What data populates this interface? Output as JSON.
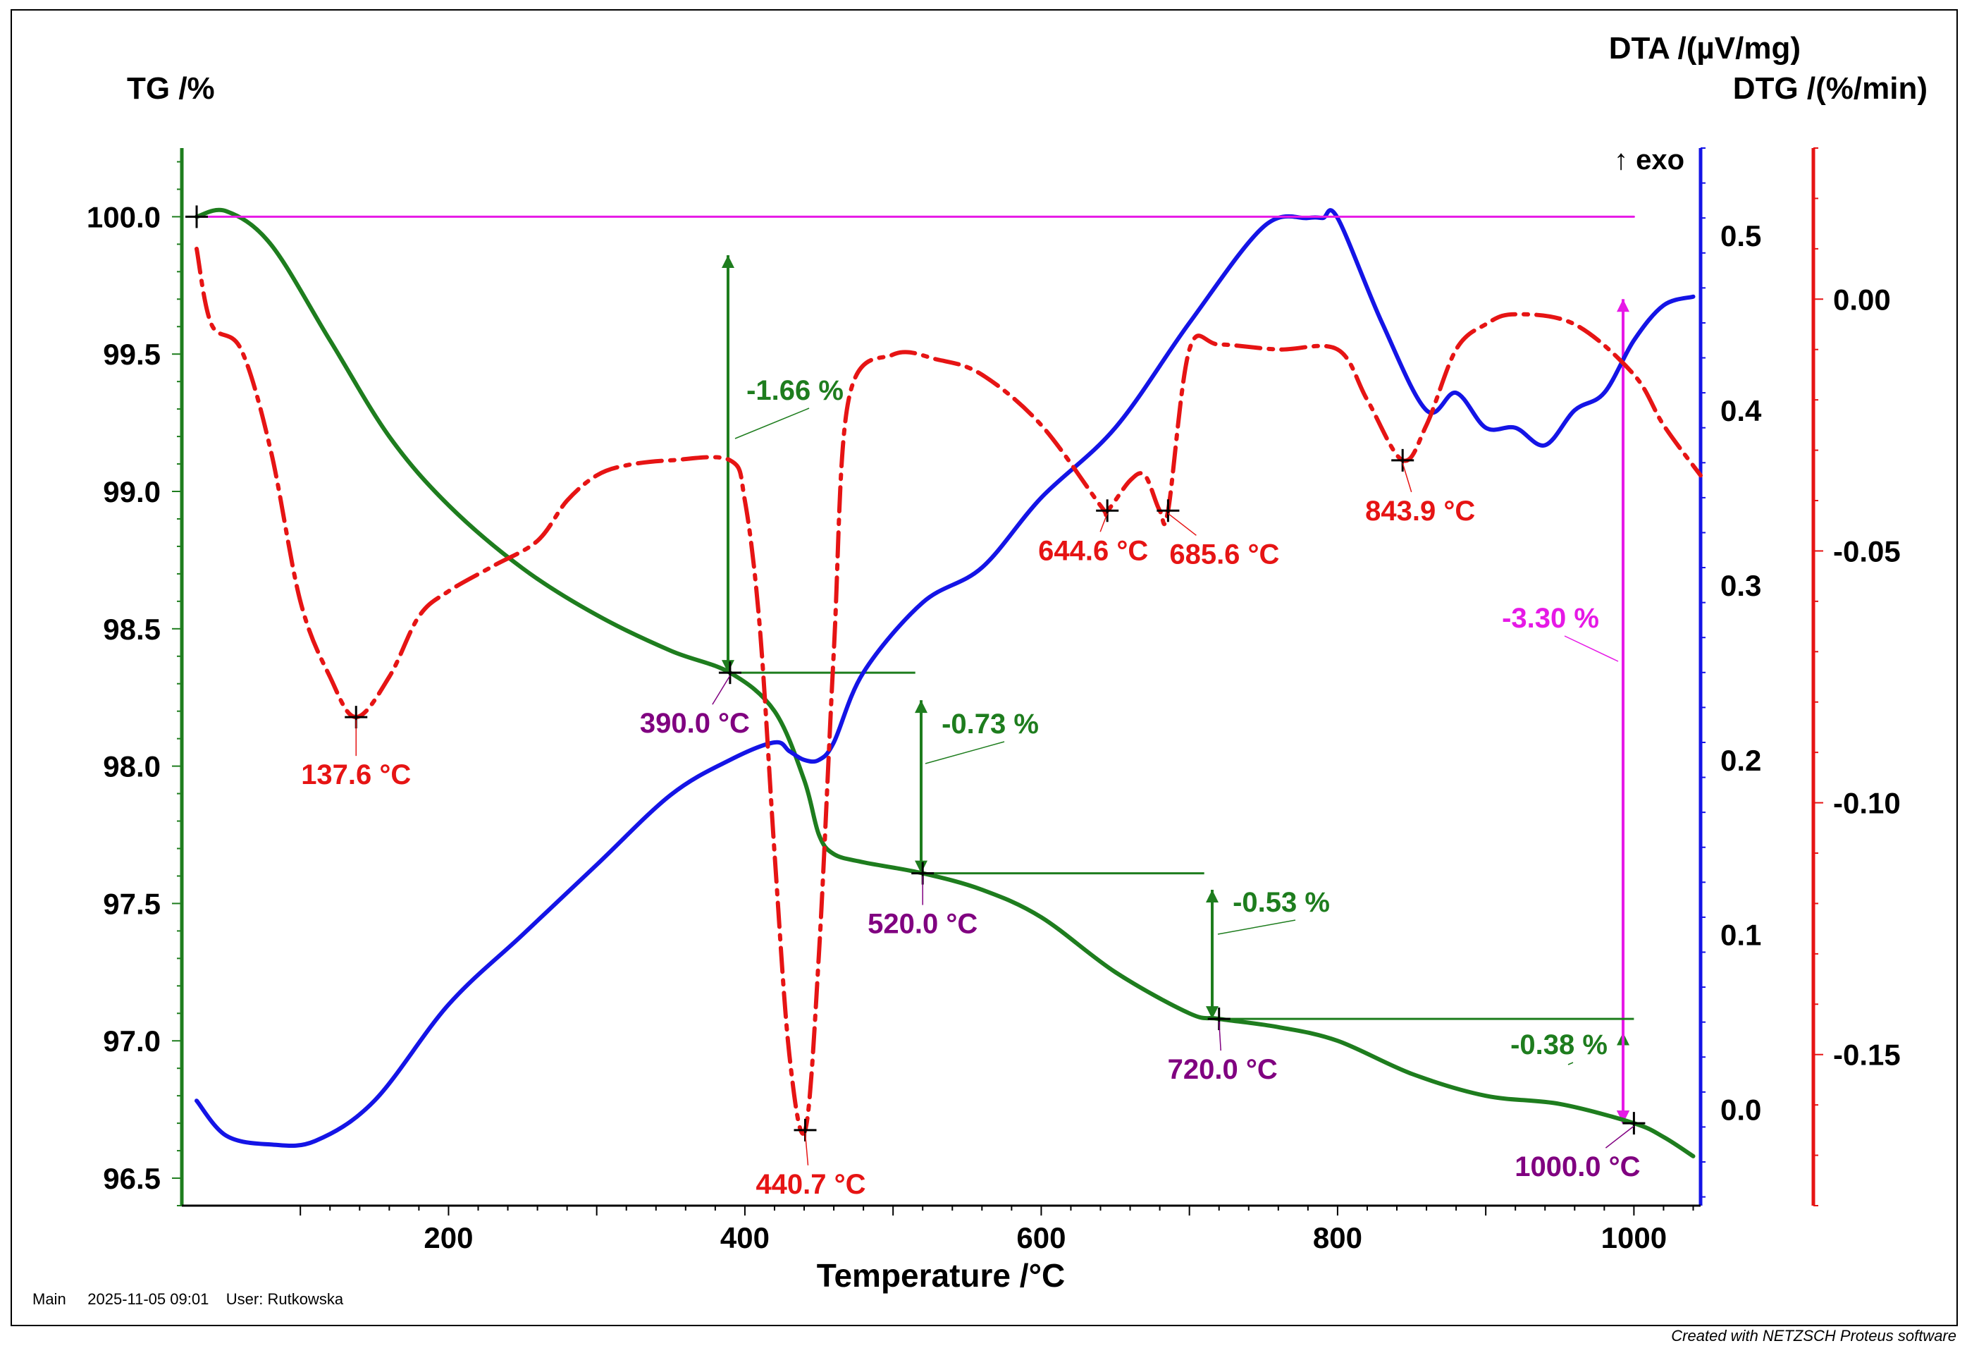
{
  "chart_data": {
    "type": "line",
    "title": "",
    "xlabel": "Temperature /°C",
    "xlim": [
      20,
      1045
    ],
    "x_ticks": [
      200,
      400,
      600,
      800,
      1000
    ],
    "axes": {
      "tg": {
        "label": "TG /%",
        "ylim": [
          96.4,
          100.25
        ],
        "ticks": [
          "100.0",
          "99.5",
          "99.0",
          "98.5",
          "98.0",
          "97.5",
          "97.0",
          "96.5"
        ],
        "color": "#1e7d1e"
      },
      "dta": {
        "label": "DTA /(µV/mg)",
        "ylim": [
          -0.055,
          0.55
        ],
        "ticks": [
          "0.5",
          "0.4",
          "0.3",
          "0.2",
          "0.1",
          "0.0"
        ],
        "exo_label": "↑ exo",
        "color": "#1414e6"
      },
      "dtg": {
        "label": "DTG /(%/min)",
        "ylim": [
          -0.18,
          0.03
        ],
        "ticks": [
          "0.00",
          "-0.05",
          "-0.10",
          "-0.15"
        ],
        "color": "#e61414"
      }
    },
    "series": [
      {
        "name": "TG",
        "axis": "tg",
        "color": "#1e7d1e",
        "x": [
          30,
          50,
          80,
          120,
          160,
          200,
          250,
          300,
          350,
          390,
          420,
          440,
          450,
          460,
          480,
          520,
          560,
          600,
          650,
          700,
          720,
          760,
          800,
          850,
          900,
          950,
          1000,
          1020,
          1040
        ],
        "y": [
          100.0,
          100.02,
          99.9,
          99.55,
          99.2,
          98.95,
          98.72,
          98.55,
          98.42,
          98.34,
          98.2,
          97.95,
          97.75,
          97.68,
          97.65,
          97.61,
          97.55,
          97.45,
          97.25,
          97.1,
          97.08,
          97.05,
          97.0,
          96.88,
          96.8,
          96.77,
          96.7,
          96.65,
          96.58
        ]
      },
      {
        "name": "DTA",
        "axis": "dta",
        "color": "#1414e6",
        "x": [
          30,
          50,
          80,
          110,
          150,
          200,
          250,
          300,
          350,
          390,
          420,
          430,
          440,
          450,
          460,
          480,
          520,
          560,
          600,
          650,
          700,
          750,
          780,
          790,
          800,
          830,
          860,
          880,
          900,
          920,
          940,
          960,
          980,
          1000,
          1020,
          1040
        ],
        "y": [
          0.005,
          -0.015,
          -0.02,
          -0.018,
          0.005,
          0.06,
          0.1,
          0.14,
          0.18,
          0.2,
          0.21,
          0.205,
          0.2,
          0.2,
          0.21,
          0.25,
          0.29,
          0.31,
          0.35,
          0.39,
          0.45,
          0.505,
          0.51,
          0.51,
          0.51,
          0.45,
          0.4,
          0.41,
          0.39,
          0.39,
          0.38,
          0.4,
          0.41,
          0.44,
          0.46,
          0.465
        ]
      },
      {
        "name": "DTG",
        "axis": "dtg",
        "color": "#e61414",
        "x": [
          30,
          40,
          60,
          80,
          100,
          120,
          137.6,
          160,
          180,
          200,
          230,
          260,
          280,
          300,
          320,
          350,
          390,
          400,
          410,
          420,
          430,
          440.7,
          450,
          460,
          470,
          500,
          530,
          560,
          600,
          640,
          644.6,
          660,
          670,
          680,
          685.6,
          700,
          720,
          760,
          800,
          820,
          843.9,
          860,
          880,
          900,
          920,
          960,
          1000,
          1020,
          1045
        ],
        "y": [
          0.01,
          -0.005,
          -0.01,
          -0.03,
          -0.06,
          -0.075,
          -0.083,
          -0.075,
          -0.063,
          -0.058,
          -0.053,
          -0.048,
          -0.04,
          -0.035,
          -0.033,
          -0.032,
          -0.032,
          -0.04,
          -0.065,
          -0.11,
          -0.15,
          -0.165,
          -0.13,
          -0.07,
          -0.02,
          -0.011,
          -0.012,
          -0.015,
          -0.025,
          -0.041,
          -0.042,
          -0.036,
          -0.035,
          -0.042,
          -0.042,
          -0.01,
          -0.009,
          -0.01,
          -0.01,
          -0.02,
          -0.032,
          -0.025,
          -0.01,
          -0.005,
          -0.003,
          -0.005,
          -0.015,
          -0.025,
          -0.035
        ]
      },
      {
        "name": "TG total step",
        "axis": "tg",
        "color": "#e619e6",
        "x": [
          30,
          1000
        ],
        "y": [
          100.0,
          100.0
        ]
      }
    ],
    "steps": [
      {
        "label": "-1.66 %",
        "x": 390,
        "from": 100.0,
        "to": 98.34,
        "color": "#1e7d1e"
      },
      {
        "label": "-0.73 %",
        "x": 520,
        "from": 98.34,
        "to": 97.61,
        "color": "#1e7d1e"
      },
      {
        "label": "-0.53 %",
        "x": 720,
        "from": 97.61,
        "to": 97.08,
        "color": "#1e7d1e"
      },
      {
        "label": "-0.38 %",
        "x": 1000,
        "from": 97.08,
        "to": 96.7,
        "color": "#1e7d1e"
      },
      {
        "label": "-3.30 %",
        "x": 1000,
        "from": 100.0,
        "to": 96.7,
        "color": "#e619e6"
      }
    ],
    "annotations": [
      {
        "text": "137.6 °C",
        "x": 137.6,
        "axis": "dtg",
        "y": -0.083,
        "color": "#e61414"
      },
      {
        "text": "440.7 °C",
        "x": 440.7,
        "axis": "dtg",
        "y": -0.165,
        "color": "#e61414"
      },
      {
        "text": "644.6 °C",
        "x": 644.6,
        "axis": "dtg",
        "y": -0.042,
        "color": "#e61414"
      },
      {
        "text": "685.6 °C",
        "x": 685.6,
        "axis": "dtg",
        "y": -0.042,
        "color": "#e61414"
      },
      {
        "text": "843.9 °C",
        "x": 843.9,
        "axis": "dtg",
        "y": -0.032,
        "color": "#e61414"
      },
      {
        "text": "390.0 °C",
        "x": 390,
        "axis": "tg",
        "y": 98.34,
        "color": "#800080"
      },
      {
        "text": "520.0 °C",
        "x": 520,
        "axis": "tg",
        "y": 97.61,
        "color": "#800080"
      },
      {
        "text": "720.0 °C",
        "x": 720,
        "axis": "tg",
        "y": 97.08,
        "color": "#800080"
      },
      {
        "text": "1000.0 °C",
        "x": 1000,
        "axis": "tg",
        "y": 96.7,
        "color": "#800080"
      }
    ]
  },
  "footer": {
    "main": "Main",
    "datetime": "2025-11-05 09:01",
    "user": "User: Rutkowska",
    "credit": "Created with NETZSCH Proteus software"
  }
}
